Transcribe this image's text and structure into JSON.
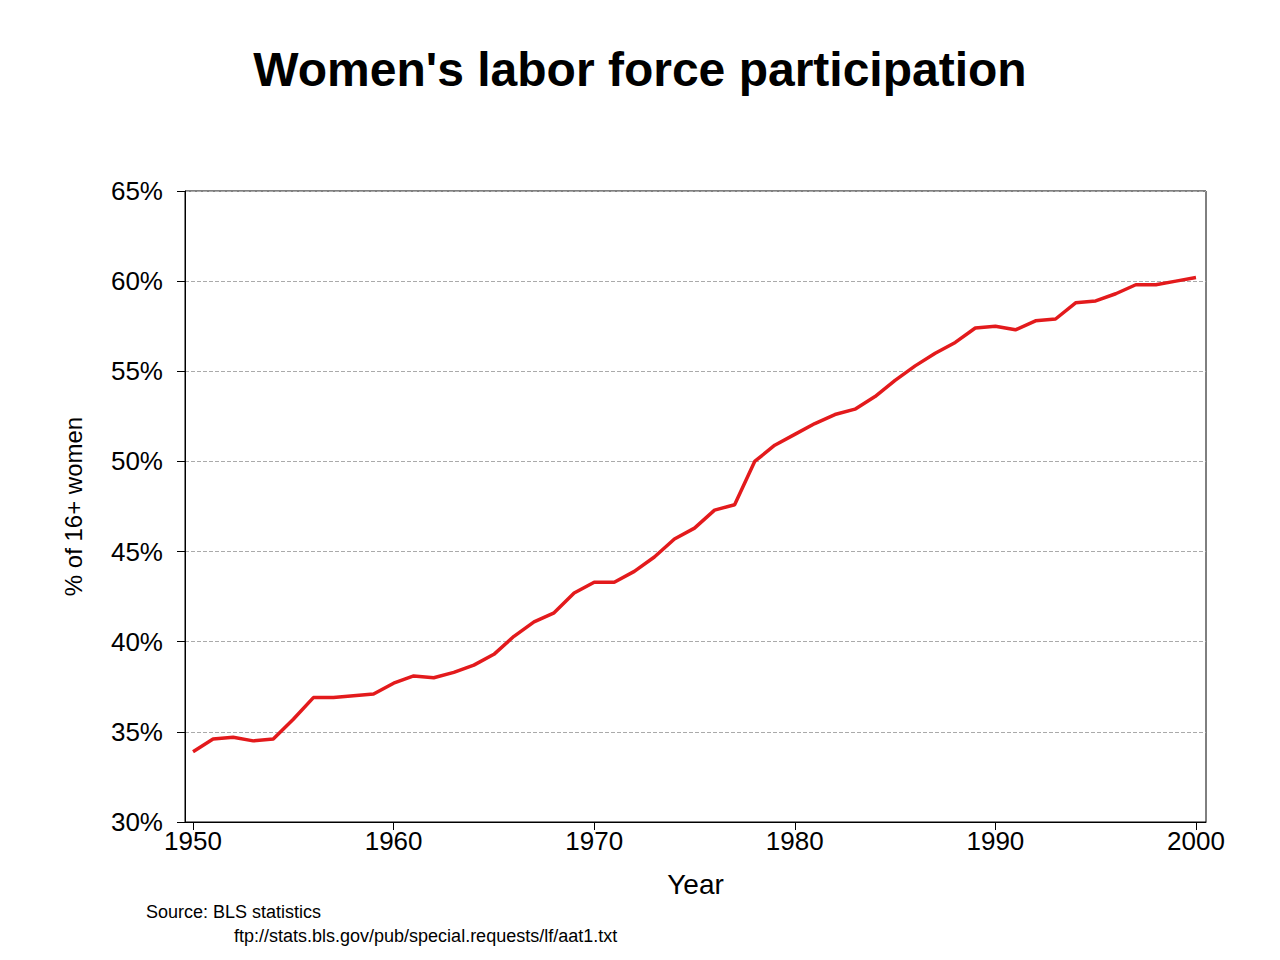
{
  "chart_data": {
    "type": "line",
    "title": "Women's labor force participation",
    "x_label": "Year",
    "y_label": "% of 16+ women",
    "annotations": [
      "Source: BLS statistics",
      "ftp://stats.bls.gov/pub/special.requests/lf/aat1.txt"
    ],
    "x": [
      1950,
      1951,
      1952,
      1953,
      1954,
      1955,
      1956,
      1957,
      1958,
      1959,
      1960,
      1961,
      1962,
      1963,
      1964,
      1965,
      1966,
      1967,
      1968,
      1969,
      1970,
      1971,
      1972,
      1973,
      1974,
      1975,
      1976,
      1977,
      1978,
      1979,
      1980,
      1981,
      1982,
      1983,
      1984,
      1985,
      1986,
      1987,
      1988,
      1989,
      1990,
      1991,
      1992,
      1993,
      1994,
      1995,
      1996,
      1997,
      1998,
      1999,
      2000
    ],
    "values": [
      33.9,
      34.6,
      34.7,
      34.5,
      34.6,
      35.7,
      36.9,
      36.9,
      37.0,
      37.1,
      37.7,
      38.1,
      38.0,
      38.3,
      38.7,
      39.3,
      40.3,
      41.1,
      41.6,
      42.7,
      43.3,
      43.3,
      43.9,
      44.7,
      45.7,
      46.3,
      47.3,
      47.6,
      50.0,
      50.9,
      51.5,
      52.1,
      52.6,
      52.9,
      53.6,
      54.5,
      55.3,
      56.0,
      56.6,
      57.4,
      57.5,
      57.3,
      57.8,
      57.9,
      58.8,
      58.9,
      59.3,
      59.8,
      59.8,
      60.0,
      60.2
    ],
    "color": "#e31a1c",
    "xlim": [
      1949.6,
      2000.5
    ],
    "xticks": [
      1950,
      1960,
      1970,
      1980,
      1990,
      2000
    ],
    "ylim": [
      30,
      65
    ],
    "yticks": [
      {
        "value": 30,
        "label": "30%"
      },
      {
        "value": 35,
        "label": "35%"
      },
      {
        "value": 40,
        "label": "40%"
      },
      {
        "value": 45,
        "label": "45%"
      },
      {
        "value": 50,
        "label": "50%"
      },
      {
        "value": 55,
        "label": "55%"
      },
      {
        "value": 60,
        "label": "60%"
      },
      {
        "value": 65,
        "label": "65%"
      }
    ],
    "grid": true
  }
}
